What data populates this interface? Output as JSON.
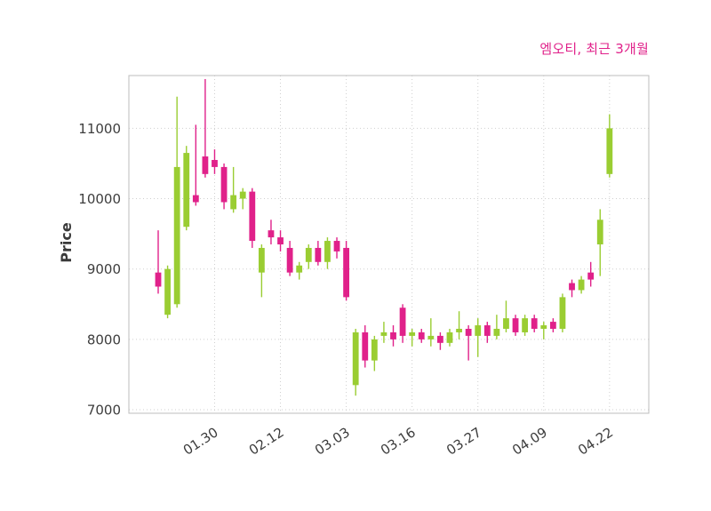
{
  "header": {
    "title": "엠오티, 최근 3개월"
  },
  "chart_data": {
    "type": "candlestick",
    "title": "엠오티, 최근 3개월",
    "title_color": "#e0218a",
    "ylabel": "Price",
    "ylim": [
      6950,
      11750
    ],
    "y_ticks": [
      7000,
      8000,
      9000,
      10000,
      11000
    ],
    "x_ticks": [
      {
        "index": 6,
        "label": "01.30"
      },
      {
        "index": 13,
        "label": "02.12"
      },
      {
        "index": 20,
        "label": "03.03"
      },
      {
        "index": 27,
        "label": "03.16"
      },
      {
        "index": 34,
        "label": "03.27"
      },
      {
        "index": 41,
        "label": "04.09"
      },
      {
        "index": 48,
        "label": "04.22"
      }
    ],
    "grid": true,
    "legend": "none",
    "up_color": "#9acd32",
    "down_color": "#e0218a",
    "candle_format": [
      "open",
      "high",
      "low",
      "close"
    ],
    "candles": [
      [
        8950,
        9550,
        8650,
        8750
      ],
      [
        8350,
        9050,
        8300,
        9000
      ],
      [
        8500,
        11450,
        8450,
        10450
      ],
      [
        9600,
        10750,
        9550,
        10650
      ],
      [
        10050,
        11050,
        9900,
        9950
      ],
      [
        10600,
        11700,
        10300,
        10350
      ],
      [
        10550,
        10700,
        10350,
        10450
      ],
      [
        10450,
        10500,
        9850,
        9950
      ],
      [
        9850,
        10450,
        9800,
        10050
      ],
      [
        10000,
        10150,
        9850,
        10100
      ],
      [
        10100,
        10150,
        9300,
        9400
      ],
      [
        8950,
        9350,
        8600,
        9300
      ],
      [
        9550,
        9700,
        9350,
        9450
      ],
      [
        9450,
        9550,
        9250,
        9350
      ],
      [
        9300,
        9400,
        8900,
        8950
      ],
      [
        8950,
        9100,
        8850,
        9050
      ],
      [
        9100,
        9350,
        9000,
        9300
      ],
      [
        9300,
        9400,
        9050,
        9100
      ],
      [
        9100,
        9450,
        9000,
        9400
      ],
      [
        9400,
        9450,
        9150,
        9250
      ],
      [
        9300,
        9400,
        8550,
        8600
      ],
      [
        7350,
        8150,
        7200,
        8100
      ],
      [
        8100,
        8200,
        7600,
        7700
      ],
      [
        7700,
        8050,
        7550,
        8000
      ],
      [
        8050,
        8250,
        7950,
        8100
      ],
      [
        8100,
        8200,
        7900,
        8000
      ],
      [
        8450,
        8500,
        7950,
        8050
      ],
      [
        8050,
        8150,
        7900,
        8100
      ],
      [
        8100,
        8150,
        7950,
        8000
      ],
      [
        8000,
        8300,
        7900,
        8050
      ],
      [
        8050,
        8100,
        7850,
        7950
      ],
      [
        7950,
        8150,
        7900,
        8100
      ],
      [
        8100,
        8400,
        8000,
        8150
      ],
      [
        8150,
        8200,
        7700,
        8050
      ],
      [
        8050,
        8300,
        7750,
        8200
      ],
      [
        8200,
        8250,
        7950,
        8050
      ],
      [
        8050,
        8350,
        8000,
        8150
      ],
      [
        8150,
        8550,
        8100,
        8300
      ],
      [
        8300,
        8350,
        8050,
        8100
      ],
      [
        8100,
        8350,
        8050,
        8300
      ],
      [
        8300,
        8350,
        8100,
        8150
      ],
      [
        8150,
        8250,
        8000,
        8200
      ],
      [
        8250,
        8300,
        8100,
        8150
      ],
      [
        8150,
        8650,
        8100,
        8600
      ],
      [
        8800,
        8850,
        8600,
        8700
      ],
      [
        8700,
        8900,
        8650,
        8850
      ],
      [
        8950,
        9100,
        8750,
        8850
      ],
      [
        9350,
        9850,
        8900,
        9700
      ],
      [
        10350,
        11200,
        10300,
        11000
      ]
    ]
  }
}
